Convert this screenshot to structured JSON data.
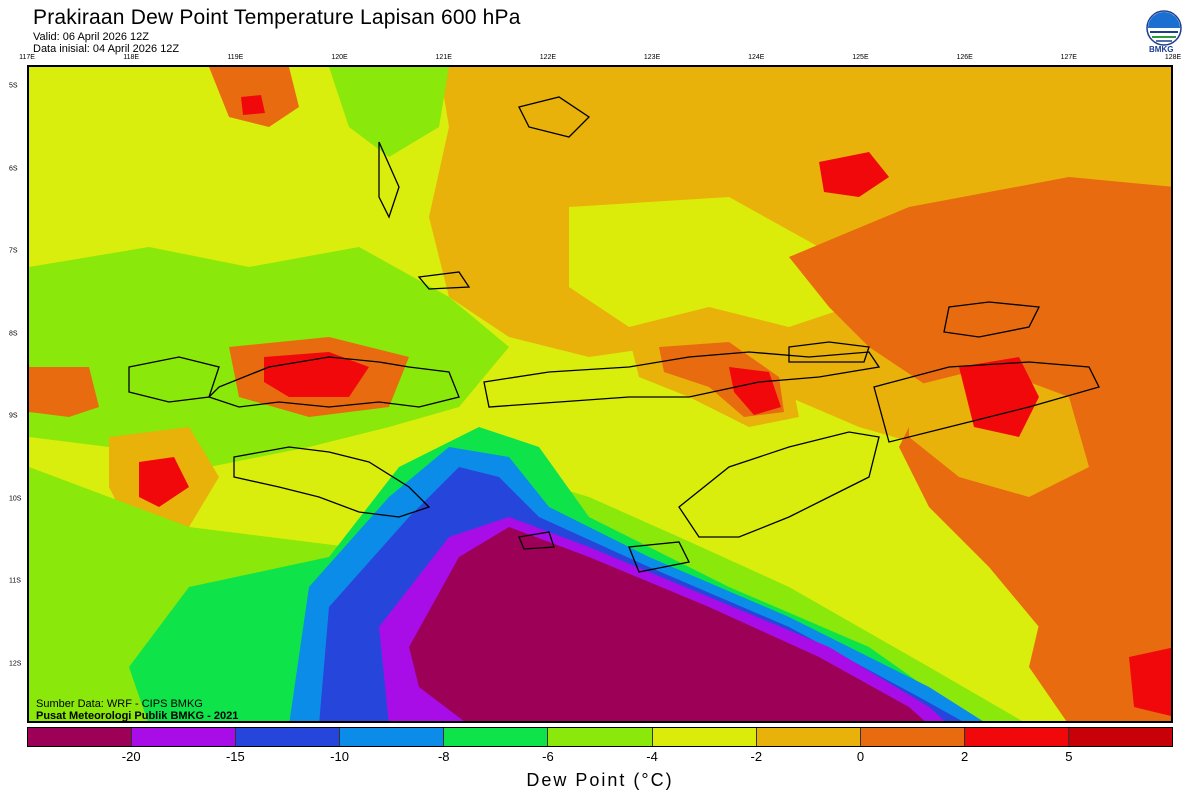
{
  "header": {
    "title": "Prakiraan Dew Point Temperature Lapisan 600 hPa",
    "valid": "Valid: 06 April 2026 12Z",
    "initial": "Data inisial: 04 April 2026 12Z"
  },
  "logo": {
    "icon": "bmkg-logo-icon",
    "label": "BMKG"
  },
  "map": {
    "lon_labels": [
      "117E",
      "118E",
      "119E",
      "120E",
      "121E",
      "122E",
      "123E",
      "124E",
      "125E",
      "126E",
      "127E",
      "128E"
    ],
    "lat_labels": [
      "5S",
      "6S",
      "7S",
      "8S",
      "9S",
      "10S",
      "11S",
      "12S"
    ],
    "source_line1": "Sumber Data: WRF - CIPS BMKG",
    "source_line2": "Pusat Meteorologi Publik BMKG - 2021",
    "colors": {
      "deep_purple": "#9c0057",
      "purple": "#a80de8",
      "blue": "#2645db",
      "light_blue": "#0a8ce8",
      "green": "#0ee34a",
      "light_green": "#8ae80a",
      "yellow": "#dcec0a",
      "gold": "#e8b20a",
      "orange": "#e86b0f",
      "red": "#f0080a",
      "dark_red": "#c80008"
    }
  },
  "colorbar": {
    "title": "Dew Point (°C)",
    "colors": [
      "#9c0057",
      "#a80de8",
      "#2645db",
      "#0a8ce8",
      "#0ee34a",
      "#8ae80a",
      "#dcec0a",
      "#e8b20a",
      "#e86b0f",
      "#f0080a",
      "#c80008"
    ],
    "ticks": [
      "-20",
      "-15",
      "-10",
      "-8",
      "-6",
      "-4",
      "-2",
      "0",
      "2",
      "5"
    ]
  }
}
